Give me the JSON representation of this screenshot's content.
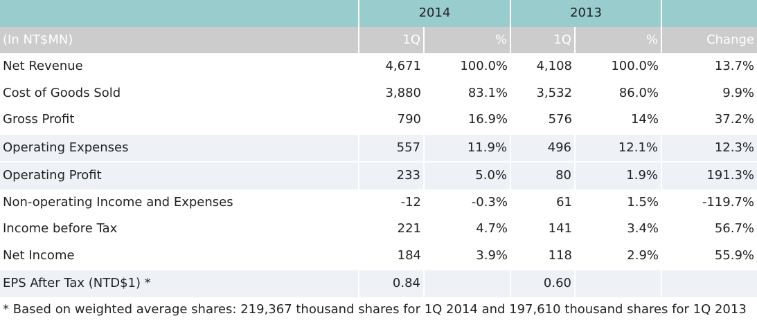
{
  "header": {
    "year_2014": "2014",
    "year_2013": "2013",
    "unit": "(In NT$MN)",
    "col_1q_2014": "1Q",
    "col_pct_2014": "%",
    "col_1q_2013": "1Q",
    "col_pct_2013": "%",
    "col_change": "Change"
  },
  "rows": [
    {
      "label": "Net Revenue",
      "q2014": "4,671",
      "p2014": "100.0%",
      "q2013": "4,108",
      "p2013": "100.0%",
      "change": "13.7%"
    },
    {
      "label": "Cost of Goods Sold",
      "q2014": "3,880",
      "p2014": "83.1%",
      "q2013": "3,532",
      "p2013": "86.0%",
      "change": "9.9%"
    },
    {
      "label": "Gross Profit",
      "q2014": "790",
      "p2014": "16.9%",
      "q2013": "576",
      "p2013": "14%",
      "change": "37.2%"
    },
    {
      "label": "Operating Expenses",
      "q2014": "557",
      "p2014": "11.9%",
      "q2013": "496",
      "p2013": "12.1%",
      "change": "12.3%"
    },
    {
      "label": "Operating Profit",
      "q2014": "233",
      "p2014": "5.0%",
      "q2013": "80",
      "p2013": "1.9%",
      "change": "191.3%"
    },
    {
      "label": "Non-operating Income and Expenses",
      "q2014": "-12",
      "p2014": "-0.3%",
      "q2013": "61",
      "p2013": "1.5%",
      "change": "-119.7%"
    },
    {
      "label": "Income before Tax",
      "q2014": "221",
      "p2014": "4.7%",
      "q2013": "141",
      "p2013": "3.4%",
      "change": "56.7%"
    },
    {
      "label": "Net Income",
      "q2014": "184",
      "p2014": "3.9%",
      "q2013": "118",
      "p2013": "2.9%",
      "change": "55.9%"
    },
    {
      "label": "EPS After Tax (NTD$1) *",
      "q2014": "0.84",
      "p2014": "",
      "q2013": "0.60",
      "p2013": "",
      "change": ""
    }
  ],
  "footnote": "* Based on weighted average shares:  219,367 thousand shares for 1Q 2014 and 197,610 thousand shares for 1Q 2013",
  "colors": {
    "year_header_bg": "#99cccc",
    "column_header_bg": "#cccccc",
    "shaded_row_bg": "#eef2f7"
  }
}
